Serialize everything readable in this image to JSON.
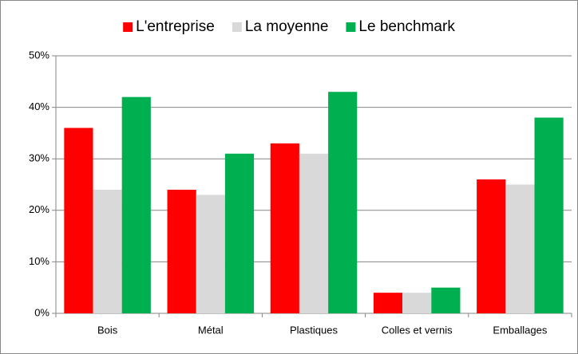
{
  "chart_data": {
    "type": "bar",
    "categories": [
      "Bois",
      "Métal",
      "Plastiques",
      "Colles et vernis",
      "Emballages"
    ],
    "series": [
      {
        "name": "L'entreprise",
        "color": "#ff0000",
        "values": [
          36,
          24,
          33,
          4,
          26
        ]
      },
      {
        "name": "La moyenne",
        "color": "#d9d9d9",
        "values": [
          24,
          23,
          31,
          4,
          25
        ]
      },
      {
        "name": "Le benchmark",
        "color": "#00b050",
        "values": [
          42,
          31,
          43,
          5,
          38
        ]
      }
    ],
    "ylim": [
      0,
      50
    ],
    "yticks": [
      {
        "value": 0,
        "label": "0%"
      },
      {
        "value": 10,
        "label": "10%"
      },
      {
        "value": 20,
        "label": "20%"
      },
      {
        "value": 30,
        "label": "30%"
      },
      {
        "value": 40,
        "label": "40%"
      },
      {
        "value": 50,
        "label": "50%"
      }
    ],
    "grid": true,
    "legend": "top"
  }
}
